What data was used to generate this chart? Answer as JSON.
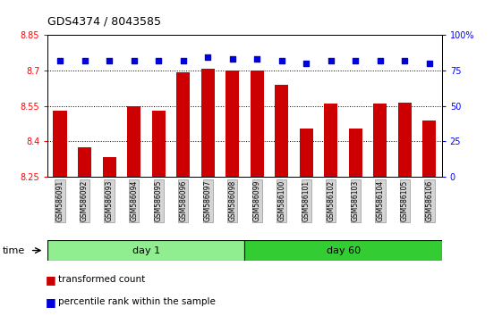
{
  "title": "GDS4374 / 8043585",
  "samples": [
    "GSM586091",
    "GSM586092",
    "GSM586093",
    "GSM586094",
    "GSM586095",
    "GSM586096",
    "GSM586097",
    "GSM586098",
    "GSM586099",
    "GSM586100",
    "GSM586101",
    "GSM586102",
    "GSM586103",
    "GSM586104",
    "GSM586105",
    "GSM586106"
  ],
  "bar_values": [
    8.53,
    8.375,
    8.335,
    8.55,
    8.53,
    8.69,
    8.705,
    8.7,
    8.7,
    8.64,
    8.455,
    8.56,
    8.455,
    8.56,
    8.565,
    8.49
  ],
  "percentile_values": [
    82,
    82,
    82,
    82,
    82,
    82,
    84,
    83,
    83,
    82,
    80,
    82,
    82,
    82,
    82,
    80
  ],
  "bar_color": "#cc0000",
  "dot_color": "#0000dd",
  "y_min": 8.25,
  "y_max": 8.85,
  "y_ticks": [
    8.25,
    8.4,
    8.55,
    8.7,
    8.85
  ],
  "y_tick_labels": [
    "8.25",
    "8.4",
    "8.55",
    "8.7",
    "8.85"
  ],
  "right_y_ticks": [
    0,
    25,
    50,
    75,
    100
  ],
  "right_y_labels": [
    "0",
    "25",
    "50",
    "75",
    "100%"
  ],
  "group_labels": [
    "day 1",
    "day 60"
  ],
  "day1_color": "#90ee90",
  "day60_color": "#33cc33",
  "legend_items": [
    "transformed count",
    "percentile rank within the sample"
  ],
  "grid_color": "#000000",
  "tick_bg": "#d4d4d4",
  "title_fontsize": 9,
  "label_fontsize": 7.5,
  "tick_fontsize": 7
}
